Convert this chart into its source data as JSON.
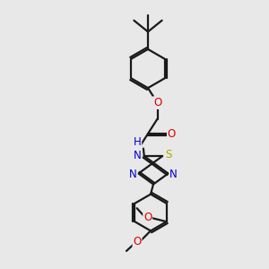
{
  "bg_color": "#e8e8e8",
  "bond_color": "#1a1a1a",
  "bond_width": 1.6,
  "atom_colors": {
    "O": "#dd0000",
    "N": "#0000cc",
    "S": "#aaaa00",
    "H": "#20a0a0"
  },
  "font_size": 8.5,
  "small_font": 7.5
}
